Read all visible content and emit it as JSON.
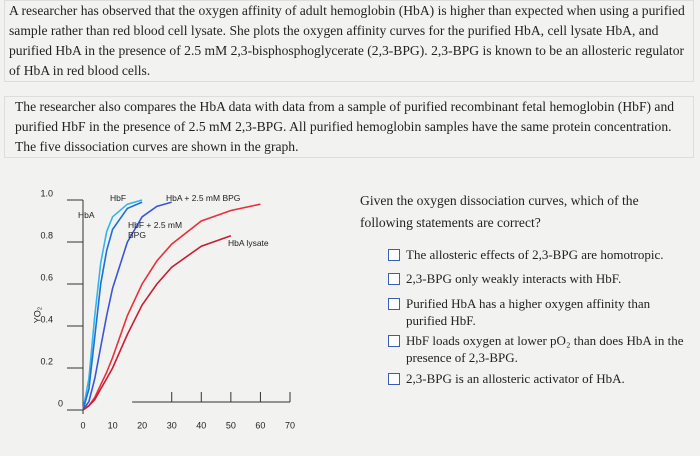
{
  "passage": {
    "paragraphs": [
      "A researcher has observed that the oxygen affinity of adult hemoglobin (HbA) is higher than expected when using a purified sample rather than red blood cell lysate. She plots the oxygen affinity curves for the purified HbA, cell lysate HbA, and purified HbA in the presence of 2.5 mM 2,3-bisphosphoglycerate (2,3-BPG). 2,3-BPG is known to be an allosteric regulator of HbA in red blood cells.",
      "The researcher also compares the HbA data with data from a sample of purified recombinant fetal hemoglobin (HbF) and purified HbF in the presence of 2.5 mM 2,3-BPG. All purified hemoglobin samples have the same protein concentration. The five dissociation curves are shown in the graph."
    ]
  },
  "chart_data": {
    "type": "line",
    "y_label": "YO₂",
    "x": [
      0,
      2,
      4,
      6,
      8,
      10,
      15,
      20,
      25,
      30,
      40,
      50,
      60
    ],
    "xlim": [
      0,
      70
    ],
    "xticks": [
      0,
      10,
      20,
      30,
      40,
      50,
      60,
      70
    ],
    "ylim": [
      0,
      1
    ],
    "yticks": [
      0,
      0.2,
      0.4,
      0.6,
      0.8,
      {
        "value": 1,
        "label": "1.0"
      }
    ],
    "series": [
      {
        "name": "HbF",
        "color": "#35b6e8",
        "values": [
          0,
          0.15,
          0.45,
          0.7,
          0.85,
          0.92,
          0.98,
          1.0,
          null,
          null,
          null,
          null,
          null
        ]
      },
      {
        "name": "HbA",
        "color": "#1e6fd6",
        "values": [
          0,
          0.1,
          0.35,
          0.6,
          0.76,
          0.86,
          0.96,
          0.99,
          null,
          null,
          null,
          null,
          null
        ]
      },
      {
        "name": "HbF + 2.5 mM BPG",
        "color": "#3a55d8",
        "values": [
          0,
          0.04,
          0.15,
          0.3,
          0.45,
          0.58,
          0.8,
          0.92,
          0.97,
          0.99,
          null,
          null,
          null
        ]
      },
      {
        "name": "HbA + 2.5 mM BPG",
        "color": "#e8303c",
        "values": [
          0,
          0.02,
          0.06,
          0.12,
          0.18,
          0.25,
          0.45,
          0.6,
          0.71,
          0.79,
          0.9,
          0.95,
          0.98
        ]
      },
      {
        "name": "HbA lysate",
        "color": "#c81e34",
        "values": [
          0,
          0.02,
          0.05,
          0.1,
          0.15,
          0.2,
          0.36,
          0.5,
          0.6,
          0.68,
          0.78,
          0.83,
          null
        ]
      }
    ]
  },
  "question": {
    "prompt": "Given the oxygen dissociation curves, which of the following statements are correct?",
    "options": [
      "The allosteric effects of 2,3-BPG are homotropic.",
      "2,3-BPG only weakly interacts with HbF.",
      "Purified HbA has a higher oxygen affinity than purified HbF.",
      "HbF loads oxygen at lower pO₂ than does HbA in the presence of 2,3-BPG.",
      "2,3-BPG is an allosteric activator of HbA."
    ]
  }
}
